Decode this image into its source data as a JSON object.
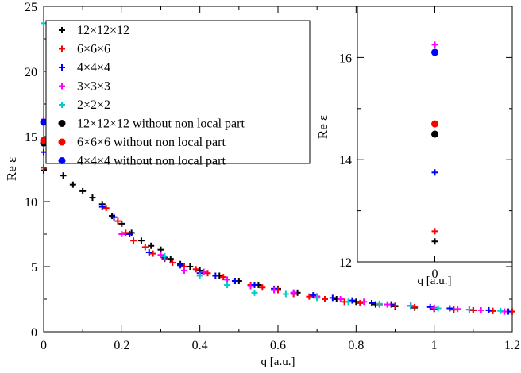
{
  "chart_data": [
    {
      "type": "scatter",
      "xlabel": "q [a.u.]",
      "ylabel": "Re  ε",
      "xlim": [
        0,
        1.2
      ],
      "ylim": [
        0,
        25
      ],
      "xticks": [
        "0",
        "0.2",
        "0.4",
        "0.6",
        "0.8",
        "1",
        "1.2"
      ],
      "yticks": [
        "0",
        "5",
        "10",
        "15",
        "20",
        "25"
      ],
      "grid": false,
      "legend_position": "top-left",
      "series": [
        {
          "name": "12×12×12",
          "marker": "plus",
          "color": "#000000",
          "x": [
            0,
            0.05,
            0.075,
            0.1,
            0.125,
            0.15,
            0.175,
            0.2,
            0.225,
            0.25,
            0.275,
            0.3,
            0.325,
            0.35,
            0.375,
            0.4,
            0.45,
            0.5,
            0.55,
            0.6,
            0.65,
            0.7,
            0.75,
            0.8,
            0.85,
            0.9,
            0.95,
            1.0,
            1.05,
            1.1,
            1.15,
            1.2
          ],
          "y": [
            12.4,
            12.0,
            11.3,
            10.8,
            10.3,
            9.8,
            8.9,
            8.3,
            7.6,
            7.0,
            6.6,
            6.3,
            5.6,
            5.2,
            5.0,
            4.7,
            4.3,
            3.9,
            3.6,
            3.3,
            3.0,
            2.7,
            2.5,
            2.3,
            2.1,
            1.95,
            1.85,
            1.75,
            1.7,
            1.65,
            1.6,
            1.55
          ]
        },
        {
          "name": "6×6×6",
          "marker": "plus",
          "color": "#ff0000",
          "x": [
            0,
            0.16,
            0.19,
            0.21,
            0.23,
            0.26,
            0.28,
            0.31,
            0.33,
            0.36,
            0.39,
            0.42,
            0.46,
            0.49,
            0.53,
            0.56,
            0.6,
            0.64,
            0.68,
            0.72,
            0.77,
            0.81,
            0.86,
            0.9,
            0.95,
            1.0,
            1.05,
            1.1,
            1.15,
            1.2
          ],
          "y": [
            12.6,
            9.5,
            8.5,
            7.6,
            7.0,
            6.5,
            6.0,
            5.6,
            5.3,
            5.0,
            4.8,
            4.5,
            4.2,
            3.9,
            3.6,
            3.4,
            3.2,
            2.9,
            2.7,
            2.5,
            2.3,
            2.2,
            2.1,
            2.0,
            1.9,
            1.8,
            1.7,
            1.65,
            1.6,
            1.55
          ]
        },
        {
          "name": "4×4×4",
          "marker": "plus",
          "color": "#0000ff",
          "x": [
            0,
            0.15,
            0.18,
            0.22,
            0.27,
            0.31,
            0.35,
            0.4,
            0.44,
            0.49,
            0.54,
            0.59,
            0.64,
            0.69,
            0.74,
            0.79,
            0.84,
            0.89,
            0.94,
            0.99,
            1.04,
            1.09,
            1.14,
            1.19
          ],
          "y": [
            13.8,
            9.6,
            8.8,
            7.5,
            6.1,
            5.7,
            5.1,
            4.5,
            4.3,
            3.9,
            3.6,
            3.3,
            3.0,
            2.8,
            2.6,
            2.4,
            2.2,
            2.1,
            2.0,
            1.9,
            1.8,
            1.7,
            1.65,
            1.55
          ]
        },
        {
          "name": "3×3×3",
          "marker": "plus",
          "color": "#ff00ff",
          "x": [
            0,
            0.2,
            0.3,
            0.36,
            0.41,
            0.47,
            0.53,
            0.59,
            0.64,
            0.7,
            0.76,
            0.82,
            0.88,
            0.94,
            1.0,
            1.06,
            1.12,
            1.18
          ],
          "y": [
            16.3,
            7.5,
            5.9,
            4.7,
            4.6,
            4.0,
            3.5,
            3.2,
            3.0,
            2.7,
            2.5,
            2.3,
            2.1,
            2.0,
            1.85,
            1.75,
            1.65,
            1.55
          ]
        },
        {
          "name": "2×2×2",
          "marker": "plus",
          "color": "#00cccc",
          "x": [
            0,
            0.31,
            0.4,
            0.47,
            0.54,
            0.62,
            0.7,
            0.78,
            0.86,
            0.94,
            1.01,
            1.09,
            1.17
          ],
          "y": [
            23.7,
            5.8,
            4.3,
            3.6,
            3.0,
            2.9,
            2.6,
            2.3,
            2.15,
            2.0,
            1.8,
            1.7,
            1.6
          ]
        },
        {
          "name": "12×12×12 without non local part",
          "marker": "circle",
          "color": "#000000",
          "x": [
            0
          ],
          "y": [
            14.5
          ]
        },
        {
          "name": "6×6×6 without non local part",
          "marker": "circle",
          "color": "#ff0000",
          "x": [
            0
          ],
          "y": [
            14.7
          ]
        },
        {
          "name": "4×4×4 without non local part",
          "marker": "circle",
          "color": "#0000ff",
          "x": [
            0
          ],
          "y": [
            16.1
          ]
        }
      ]
    },
    {
      "type": "scatter",
      "title": "",
      "xlabel": "q [a.u.]",
      "ylabel": "Re  ε",
      "xlim": [
        -1,
        1
      ],
      "ylim": [
        12,
        17
      ],
      "xticks": [
        "0"
      ],
      "yticks": [
        "12",
        "14",
        "16"
      ],
      "series": [
        {
          "marker": "plus",
          "color": "#000000",
          "x": [
            0
          ],
          "y": [
            12.4
          ]
        },
        {
          "marker": "plus",
          "color": "#ff0000",
          "x": [
            0
          ],
          "y": [
            12.6
          ]
        },
        {
          "marker": "plus",
          "color": "#0000ff",
          "x": [
            0
          ],
          "y": [
            13.75
          ]
        },
        {
          "marker": "plus",
          "color": "#ff00ff",
          "x": [
            0
          ],
          "y": [
            16.25
          ]
        },
        {
          "marker": "circle",
          "color": "#000000",
          "x": [
            0
          ],
          "y": [
            14.5
          ]
        },
        {
          "marker": "circle",
          "color": "#ff0000",
          "x": [
            0
          ],
          "y": [
            14.7
          ]
        },
        {
          "marker": "circle",
          "color": "#0000ff",
          "x": [
            0
          ],
          "y": [
            16.1
          ]
        }
      ]
    }
  ]
}
